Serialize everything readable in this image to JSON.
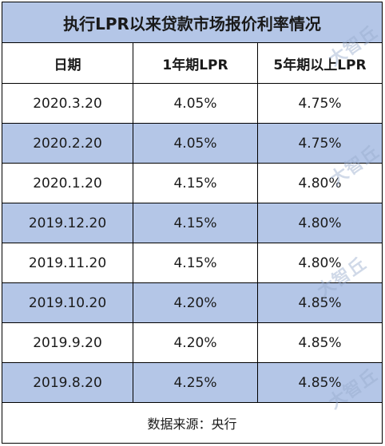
{
  "title": "执行LPR以来贷款市场报价利率情况",
  "headers": [
    "日期",
    "1年期LPR",
    "5年期以上LPR"
  ],
  "rows": [
    {
      "date": "2020.3.20",
      "lpr1y": "4.05%",
      "lpr5y": "4.75%"
    },
    {
      "date": "2020.2.20",
      "lpr1y": "4.05%",
      "lpr5y": "4.75%"
    },
    {
      "date": "2020.1.20",
      "lpr1y": "4.15%",
      "lpr5y": "4.80%"
    },
    {
      "date": "2019.12.20",
      "lpr1y": "4.15%",
      "lpr5y": "4.80%"
    },
    {
      "date": "2019.11.20",
      "lpr1y": "4.15%",
      "lpr5y": "4.80%"
    },
    {
      "date": "2019.10.20",
      "lpr1y": "4.20%",
      "lpr5y": "4.85%"
    },
    {
      "date": "2019.9.20",
      "lpr1y": "4.20%",
      "lpr5y": "4.85%"
    },
    {
      "date": "2019.8.20",
      "lpr1y": "4.25%",
      "lpr5y": "4.85%"
    }
  ],
  "source": "数据来源：央行",
  "watermark_text": "大智丘",
  "colors": {
    "header_fill": "#b4c6e7",
    "shaded_row_fill": "#b4c6e7",
    "border": "#000000"
  }
}
